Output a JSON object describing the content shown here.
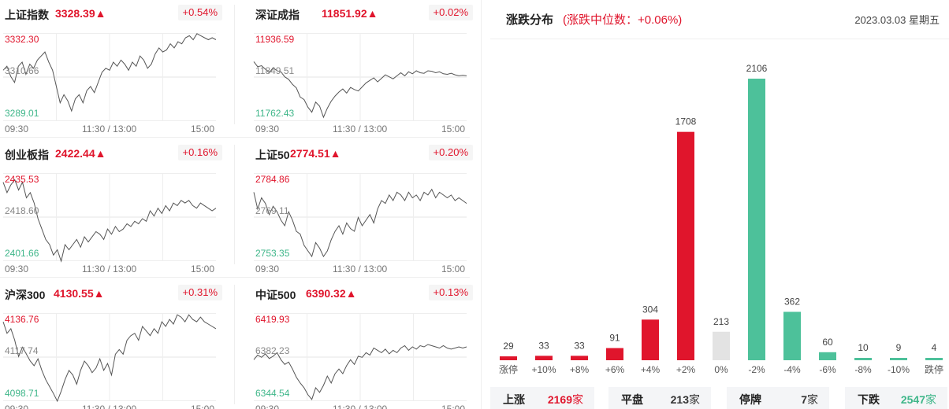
{
  "indices": [
    {
      "name": "上证指数",
      "value": "3328.39▲",
      "change": "+0.54%",
      "high": "3332.30",
      "mid": "3310.66",
      "low": "3289.01",
      "series": [
        3314,
        3316,
        3311,
        3308,
        3316,
        3318,
        3312,
        3317,
        3315,
        3319,
        3321,
        3323,
        3318,
        3314,
        3306,
        3298,
        3302,
        3299,
        3294,
        3300,
        3302,
        3298,
        3304,
        3306,
        3303,
        3308,
        3313,
        3315,
        3314,
        3318,
        3316,
        3319,
        3317,
        3314,
        3318,
        3316,
        3321,
        3319,
        3315,
        3317,
        3322,
        3325,
        3323,
        3324,
        3327,
        3325,
        3328,
        3327,
        3330,
        3331,
        3329,
        3332,
        3331,
        3330,
        3329,
        3330,
        3329
      ]
    },
    {
      "name": "深证成指",
      "value": "11851.92▲",
      "change": "+0.02%",
      "high": "11936.59",
      "mid": "11849.51",
      "low": "11762.43",
      "series": [
        11880,
        11870,
        11872,
        11865,
        11858,
        11868,
        11862,
        11860,
        11850,
        11845,
        11835,
        11828,
        11810,
        11805,
        11790,
        11780,
        11800,
        11792,
        11770,
        11788,
        11802,
        11812,
        11820,
        11826,
        11818,
        11829,
        11825,
        11822,
        11830,
        11838,
        11843,
        11848,
        11840,
        11847,
        11854,
        11850,
        11846,
        11852,
        11858,
        11852,
        11860,
        11856,
        11862,
        11858,
        11857,
        11862,
        11861,
        11858,
        11860,
        11856,
        11855,
        11857,
        11854,
        11852,
        11853,
        11852
      ]
    },
    {
      "name": "创业板指",
      "value": "2422.44▲",
      "change": "+0.16%",
      "high": "2435.53",
      "mid": "2418.60",
      "low": "2401.66",
      "series": [
        2432,
        2428,
        2431,
        2433,
        2429,
        2432,
        2426,
        2428,
        2424,
        2418,
        2414,
        2410,
        2408,
        2404,
        2406,
        2400,
        2408,
        2406,
        2408,
        2410,
        2407,
        2411,
        2409,
        2411,
        2413,
        2412,
        2410,
        2414,
        2412,
        2415,
        2413,
        2414,
        2416,
        2415,
        2417,
        2416,
        2418,
        2417,
        2421,
        2419,
        2422,
        2420,
        2423,
        2421,
        2424,
        2423,
        2425,
        2424,
        2425,
        2423,
        2422,
        2424,
        2423,
        2422,
        2421,
        2422
      ]
    },
    {
      "name": "上证50",
      "value": "2774.51▲",
      "change": "+0.20%",
      "high": "2784.86",
      "mid": "2769.11",
      "low": "2753.35",
      "series": [
        2778,
        2772,
        2776,
        2774,
        2770,
        2773,
        2771,
        2768,
        2766,
        2771,
        2768,
        2764,
        2763,
        2759,
        2757,
        2755,
        2760,
        2758,
        2755,
        2757,
        2761,
        2764,
        2766,
        2763,
        2767,
        2765,
        2764,
        2769,
        2766,
        2768,
        2770,
        2767,
        2772,
        2775,
        2774,
        2777,
        2775,
        2778,
        2777,
        2775,
        2778,
        2776,
        2777,
        2775,
        2778,
        2777,
        2779,
        2776,
        2778,
        2777,
        2776,
        2777,
        2775,
        2776,
        2775,
        2774
      ]
    },
    {
      "name": "沪深300",
      "value": "4130.55▲",
      "change": "+0.31%",
      "high": "4136.76",
      "mid": "4117.74",
      "low": "4098.71",
      "series": [
        4133,
        4128,
        4130,
        4125,
        4118,
        4122,
        4119,
        4116,
        4114,
        4117,
        4112,
        4108,
        4105,
        4102,
        4098,
        4103,
        4108,
        4112,
        4110,
        4106,
        4112,
        4116,
        4114,
        4111,
        4113,
        4117,
        4112,
        4115,
        4110,
        4119,
        4121,
        4119,
        4125,
        4127,
        4128,
        4125,
        4131,
        4129,
        4127,
        4130,
        4128,
        4133,
        4131,
        4134,
        4132,
        4136,
        4135,
        4133,
        4136,
        4134,
        4133,
        4135,
        4133,
        4132,
        4131,
        4130
      ]
    },
    {
      "name": "中证500",
      "value": "6390.32▲",
      "change": "+0.13%",
      "high": "6419.93",
      "mid": "6382.23",
      "low": "6344.54",
      "series": [
        6380,
        6384,
        6382,
        6385,
        6381,
        6383,
        6386,
        6380,
        6376,
        6378,
        6372,
        6365,
        6360,
        6356,
        6350,
        6346,
        6356,
        6352,
        6358,
        6366,
        6360,
        6368,
        6372,
        6368,
        6375,
        6380,
        6376,
        6383,
        6382,
        6386,
        6384,
        6390,
        6388,
        6386,
        6389,
        6385,
        6388,
        6386,
        6390,
        6392,
        6388,
        6391,
        6389,
        6392,
        6391,
        6393,
        6392,
        6391,
        6390,
        6392,
        6390,
        6389,
        6390,
        6391,
        6390,
        6391
      ]
    }
  ],
  "time_axis": {
    "start": "09:30",
    "mid": "11:30 / 13:00",
    "end": "15:00"
  },
  "distribution": {
    "title": "涨跌分布",
    "median_text": "(涨跌中位数：+0.06%)",
    "date": "2023.03.03 星期五",
    "colors": {
      "up": "#e0152c",
      "flat": "#e3e3e3",
      "down": "#4dc19a"
    },
    "summary": [
      {
        "label": "上涨",
        "value": "2169",
        "unit": "家",
        "color": "#e0152c"
      },
      {
        "label": "平盘",
        "value": "213",
        "unit": "家",
        "color": "#333333"
      },
      {
        "label": "停牌",
        "value": "7",
        "unit": "家",
        "color": "#333333"
      },
      {
        "label": "下跌",
        "value": "2547",
        "unit": "家",
        "color": "#3eb689"
      }
    ]
  },
  "chart_data": {
    "type": "bar",
    "categories": [
      "涨停",
      "+10%",
      "+8%",
      "+6%",
      "+4%",
      "+2%",
      "0%",
      "-2%",
      "-4%",
      "-6%",
      "-8%",
      "-10%",
      "跌停"
    ],
    "values": [
      29,
      33,
      33,
      91,
      304,
      1708,
      213,
      2106,
      362,
      60,
      10,
      9,
      4
    ],
    "kinds": [
      "up",
      "up",
      "up",
      "up",
      "up",
      "up",
      "flat",
      "down",
      "down",
      "down",
      "down",
      "down",
      "down"
    ]
  }
}
